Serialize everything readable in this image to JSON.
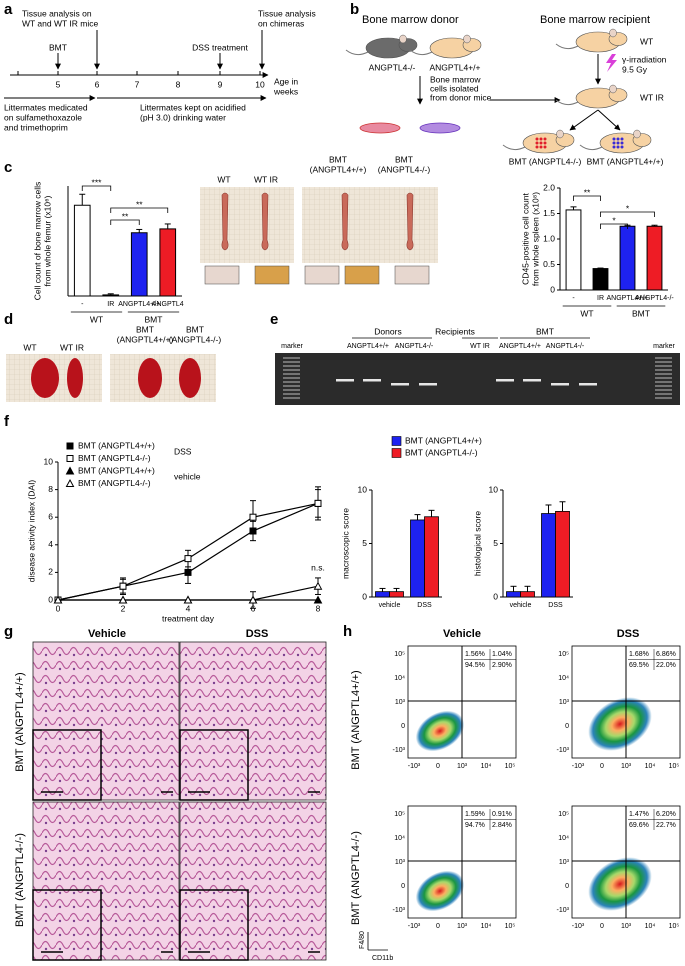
{
  "panel_labels": [
    "a",
    "b",
    "c",
    "d",
    "e",
    "f",
    "g",
    "h"
  ],
  "timeline": {
    "ticks": [
      5,
      6,
      7,
      8,
      9,
      10
    ],
    "axis_label": [
      "Age in",
      "weeks"
    ],
    "bmt": "BMT",
    "tissue_wt": [
      "Tissue analysis on",
      "WT and WT IR mice"
    ],
    "dss": "DSS treatment",
    "tissue_chimeras": [
      "Tissue analysis",
      "on chimeras"
    ],
    "medicated": [
      "Littermates medicated",
      "on sulfamethoxazole",
      "and trimethoprim"
    ],
    "acidified": [
      "Littermates kept on acidified",
      "(pH 3.0) drinking water"
    ]
  },
  "scheme": {
    "donor_title": "Bone marrow donor",
    "recipient_title": "Bone marrow recipient",
    "ko": "ANGPTL4-/-",
    "wt_donor": "ANGPTL4+/+",
    "isolated": [
      "Bone marrow",
      "cells isolated",
      "from donor mice"
    ],
    "wt": "WT",
    "irradiation": [
      "γ-irradiation",
      "9.5 Gy"
    ],
    "wt_ir": "WT IR",
    "bmt_ko": "BMT (ANGPTL4-/-)",
    "bmt_wt": "BMT (ANGPTL4+/+)"
  },
  "bone_photos": {
    "labels": [
      [
        "WT"
      ],
      [
        "WT IR"
      ],
      [
        "BMT",
        "(ANGPTL4+/+)"
      ],
      [
        "BMT",
        "(ANGPTL4-/-)"
      ]
    ]
  },
  "spleen_photos": {
    "labels": [
      [
        "WT"
      ],
      [
        "WT IR"
      ],
      [
        "BMT",
        "(ANGPTL4+/+)"
      ],
      [
        "BMT",
        "(ANGPTL4-/-)"
      ]
    ]
  },
  "gel": {
    "marker": "marker",
    "groups": [
      "Donors",
      "Recipients",
      "BMT"
    ],
    "lanes": [
      "ANGPTL4+/+",
      "ANGPTL4-/-",
      "WT IR",
      "ANGPTL4+/+",
      "ANGPTL4-/-"
    ]
  },
  "histology": {
    "columns": [
      "Vehicle",
      "DSS"
    ],
    "rows": [
      "BMT (ANGPTL4+/+)",
      "BMT (ANGPTL4-/-)"
    ]
  },
  "flow": {
    "columns": [
      "Vehicle",
      "DSS"
    ],
    "rows": [
      "BMT (ANGPTL4+/+)",
      "BMT (ANGPTL4-/-)"
    ],
    "quadrants": [
      [
        [
          "1.56%",
          "1.04%"
        ],
        [
          "94.5%",
          "2.90%"
        ]
      ],
      [
        [
          "1.68%",
          "6.86%"
        ],
        [
          "69.5%",
          "22.0%"
        ]
      ],
      [
        [
          "1.59%",
          "0.91%"
        ],
        [
          "94.7%",
          "2.84%"
        ]
      ],
      [
        [
          "1.47%",
          "6.20%"
        ],
        [
          "69.6%",
          "22.7%"
        ]
      ]
    ],
    "x_label": "CD11b",
    "y_label": "F4/80",
    "xticks": [
      "-10³",
      "0",
      "10³",
      "10⁴",
      "10⁵"
    ],
    "yticks": [
      "10⁵",
      "10⁴",
      "10³",
      "0",
      "-10³"
    ]
  },
  "chart_data": [
    {
      "type": "bar",
      "ylabel": [
        "Cell count of bone marrow cells",
        "from whole femur (x10⁶)"
      ],
      "categories": [
        "-",
        "IR",
        "ANGPTL4+/+",
        "ANGPTL4"
      ],
      "category_colors": [
        "#000000",
        "#000000",
        "#1e22f0",
        "#ee1c25"
      ],
      "values": [
        16.5,
        0.2,
        11.5,
        12.2
      ],
      "errors": [
        2.0,
        0.2,
        0.6,
        0.9
      ],
      "colors": [
        "#ffffff",
        "#000000",
        "#1e22f0",
        "#ee1c25"
      ],
      "ylim": [
        0,
        20
      ],
      "groups": [
        "WT",
        "BMT"
      ],
      "significance": [
        "***",
        "**",
        "**"
      ]
    },
    {
      "type": "bar",
      "ylabel": [
        "CD45-positive cell count",
        "from whole spleen (x10⁸)"
      ],
      "categories": [
        "-",
        "IR",
        "ANGPTL4+/+",
        "ANGPTL4-/-"
      ],
      "category_colors": [
        "#000000",
        "#000000",
        "#1e22f0",
        "#ee1c25"
      ],
      "values": [
        1.57,
        0.42,
        1.25,
        1.25
      ],
      "errors": [
        0.06,
        0.01,
        0.02,
        0.02
      ],
      "colors": [
        "#ffffff",
        "#000000",
        "#1e22f0",
        "#ee1c25"
      ],
      "ylim": [
        0,
        2
      ],
      "yticks": [
        0,
        0.5,
        {
          "value": 1,
          "label": "1.0"
        },
        1.5,
        {
          "value": 2,
          "label": "2.0"
        }
      ],
      "groups": [
        "WT",
        "BMT"
      ],
      "significance": [
        "**",
        "*",
        "*"
      ]
    },
    {
      "type": "line",
      "xlabel": "treatment day",
      "ylabel": "disease  activity index (DAI)",
      "x": [
        0,
        2,
        4,
        6,
        8
      ],
      "xlim": [
        0,
        8
      ],
      "xticks": [
        0,
        2,
        4,
        6,
        8
      ],
      "ylim": [
        0,
        10
      ],
      "yticks": [
        0,
        2,
        4,
        6,
        8,
        10
      ],
      "series": [
        {
          "name": "BMT (ANGPTL4+/+)",
          "name_color": "#1e22f0",
          "color": "#000000",
          "marker": "square",
          "filled": true,
          "values": [
            0,
            1,
            2,
            5,
            7
          ],
          "errors": [
            0,
            0.5,
            0.8,
            0.7,
            1.0
          ]
        },
        {
          "name": "BMT (ANGPTL4-/-)",
          "name_color": "#ee1c25",
          "color": "#000000",
          "marker": "square",
          "filled": false,
          "values": [
            0,
            1,
            3,
            6,
            7
          ],
          "errors": [
            0,
            0.6,
            0.6,
            1.2,
            1.2
          ]
        },
        {
          "name": "BMT (ANGPTL4+/+)",
          "name_color": "#1e22f0",
          "color": "#000000",
          "marker": "triangle",
          "filled": true,
          "values": [
            0,
            0,
            0,
            0,
            0
          ],
          "errors": [
            0,
            0,
            0,
            0.6,
            0
          ]
        },
        {
          "name": "BMT (ANGPTL4-/-)",
          "name_color": "#ee1c25",
          "color": "#000000",
          "marker": "triangle",
          "filled": false,
          "values": [
            0,
            0,
            0,
            0,
            1
          ],
          "errors": [
            0,
            0,
            0,
            0,
            0.6
          ]
        }
      ],
      "legend_groups": [
        "DSS",
        "vehicle"
      ],
      "annotation": "n.s."
    },
    {
      "type": "bar",
      "ylabel": "macroscopic score",
      "categories": [
        "vehicle",
        "DSS"
      ],
      "ylim": [
        0,
        10
      ],
      "yticks": [
        0,
        5,
        10
      ],
      "series": [
        {
          "name": "BMT (ANGPTL4+/+)",
          "color": "#1e22f0",
          "values": [
            0.5,
            7.2
          ],
          "errors": [
            0.3,
            0.5
          ]
        },
        {
          "name": "BMT (ANGPTL4-/-)",
          "color": "#ee1c25",
          "values": [
            0.5,
            7.5
          ],
          "errors": [
            0.3,
            0.6
          ]
        }
      ]
    },
    {
      "type": "bar",
      "ylabel": "histological score",
      "categories": [
        "vehicle",
        "DSS"
      ],
      "ylim": [
        0,
        10
      ],
      "yticks": [
        0,
        5,
        10
      ],
      "series": [
        {
          "color": "#1e22f0",
          "values": [
            0.5,
            7.8
          ],
          "errors": [
            0.5,
            0.8
          ]
        },
        {
          "color": "#ee1c25",
          "values": [
            0.5,
            8.0
          ],
          "errors": [
            0.5,
            0.9
          ]
        }
      ]
    }
  ]
}
